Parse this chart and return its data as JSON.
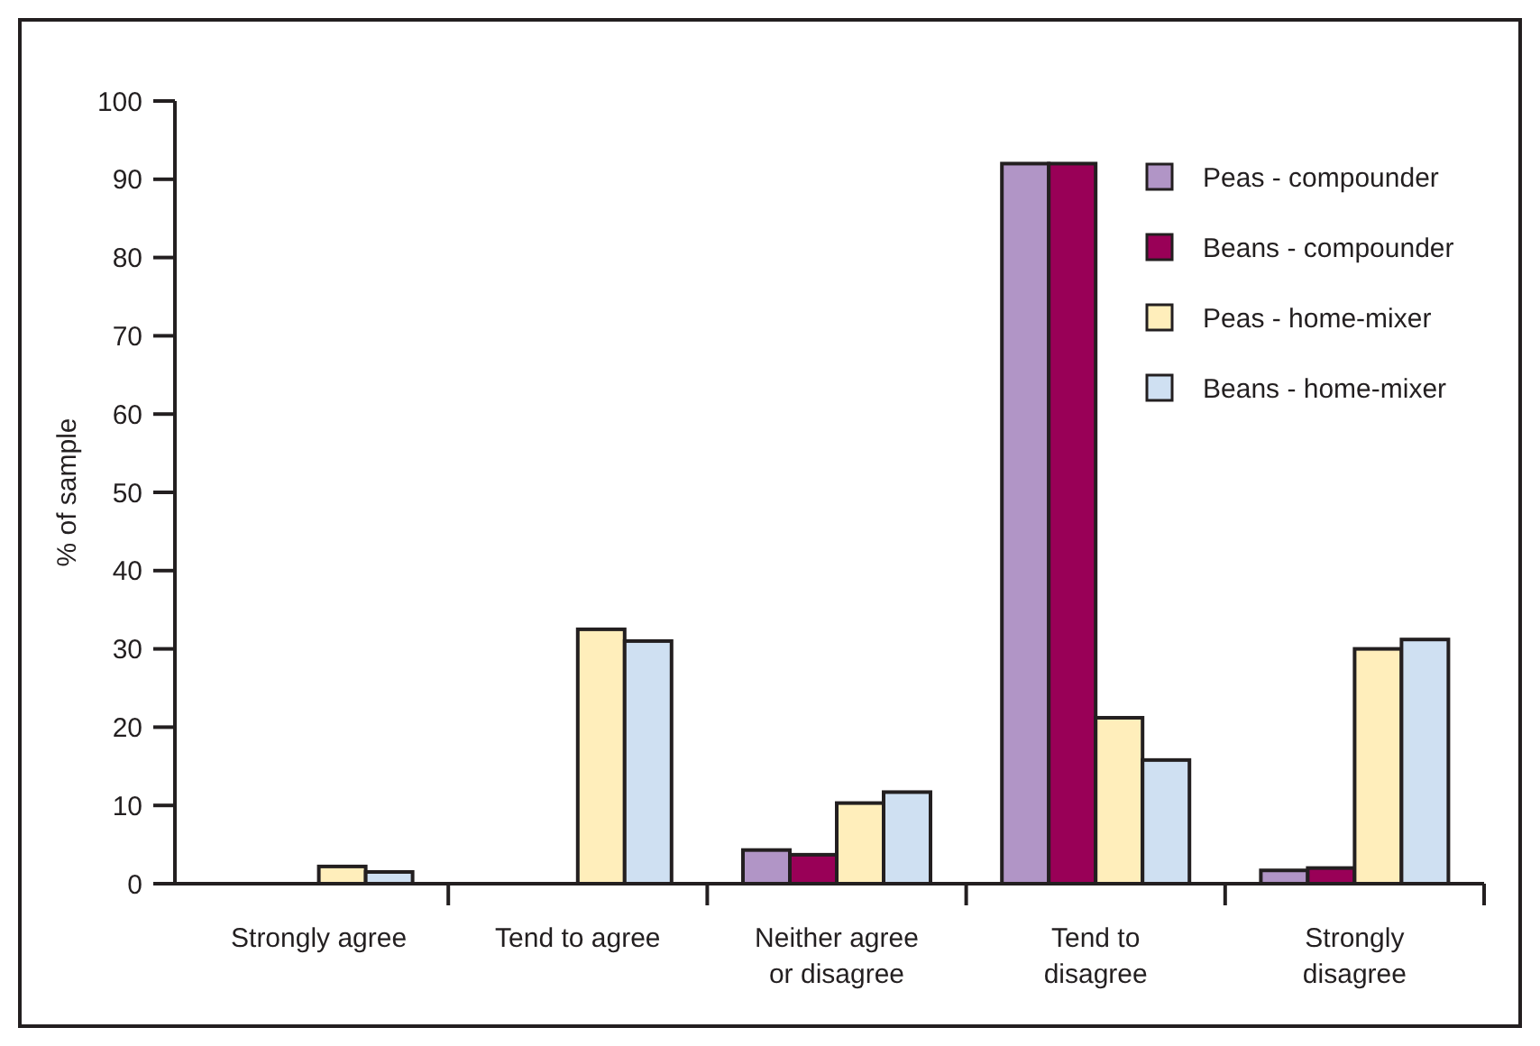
{
  "chart_data": {
    "type": "bar",
    "ylabel": "% of sample",
    "categories": [
      "Strongly agree",
      "Tend to agree",
      "Neither agree or disagree",
      "Tend to disagree",
      "Strongly disagree"
    ],
    "series": [
      {
        "name": "Peas - compounder",
        "color": "#b195c6",
        "values": [
          0,
          0,
          4.3,
          92,
          1.7
        ]
      },
      {
        "name": "Beans - compounder",
        "color": "#990057",
        "values": [
          0,
          0,
          3.7,
          92,
          2
        ]
      },
      {
        "name": "Peas - home-mixer",
        "color": "#ffeebb",
        "values": [
          2.2,
          32.5,
          10.3,
          21.2,
          30
        ]
      },
      {
        "name": "Beans - home-mixer",
        "color": "#cfe0f2",
        "values": [
          1.5,
          31,
          11.7,
          15.8,
          31.2
        ]
      }
    ],
    "ylim": [
      0,
      100
    ],
    "yticks": [
      0,
      10,
      20,
      30,
      40,
      50,
      60,
      70,
      80,
      90,
      100
    ],
    "legend": "top right",
    "grid": false
  }
}
